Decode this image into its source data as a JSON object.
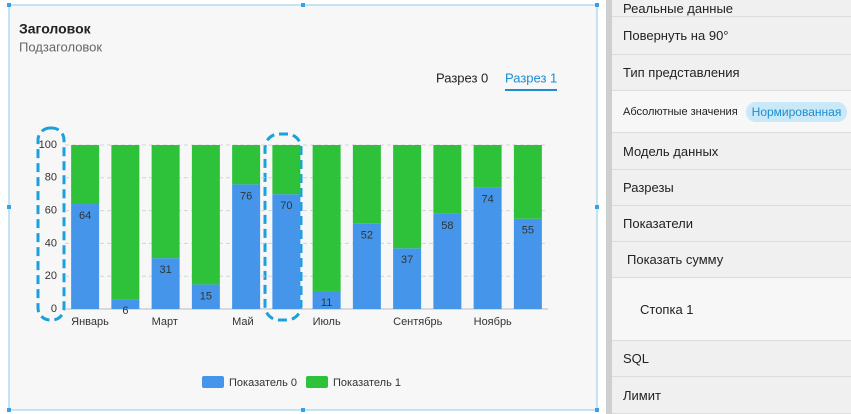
{
  "chart_data": {
    "type": "stacked_bar",
    "title": "Заголовок",
    "subtitle": "Подзаголовок",
    "tabs": [
      "Разрез 0",
      "Разрез 1"
    ],
    "active_tab": 1,
    "categories": [
      "Январь",
      null,
      "Март",
      null,
      "Май",
      null,
      "Июль",
      null,
      "Сентябрь",
      null,
      "Ноябрь",
      null
    ],
    "series": [
      {
        "name": "Показатель 0",
        "color": "#4596ea",
        "values": [
          64,
          6,
          31,
          15,
          76,
          70,
          11,
          52,
          37,
          58,
          74,
          55
        ]
      },
      {
        "name": "Показатель 1",
        "color": "#2ec23b",
        "values": [
          36,
          94,
          69,
          85,
          24,
          30,
          89,
          48,
          63,
          42,
          26,
          45
        ]
      }
    ],
    "ylim": [
      0,
      100
    ],
    "yticks": [
      0,
      20,
      40,
      60,
      80,
      100
    ],
    "grid": true,
    "legend": "bottom"
  },
  "panel": {
    "items": [
      "Реальные данные",
      "Повернуть на 90°",
      "Тип представления"
    ],
    "toggle": {
      "label": "Абсолютные значения",
      "option": "Нормированная"
    },
    "items2": [
      "Модель данных",
      "Разрезы",
      "Показатели",
      "Показать сумму"
    ],
    "stack": "Стопка 1",
    "items3": [
      "SQL",
      "Лимит"
    ]
  }
}
